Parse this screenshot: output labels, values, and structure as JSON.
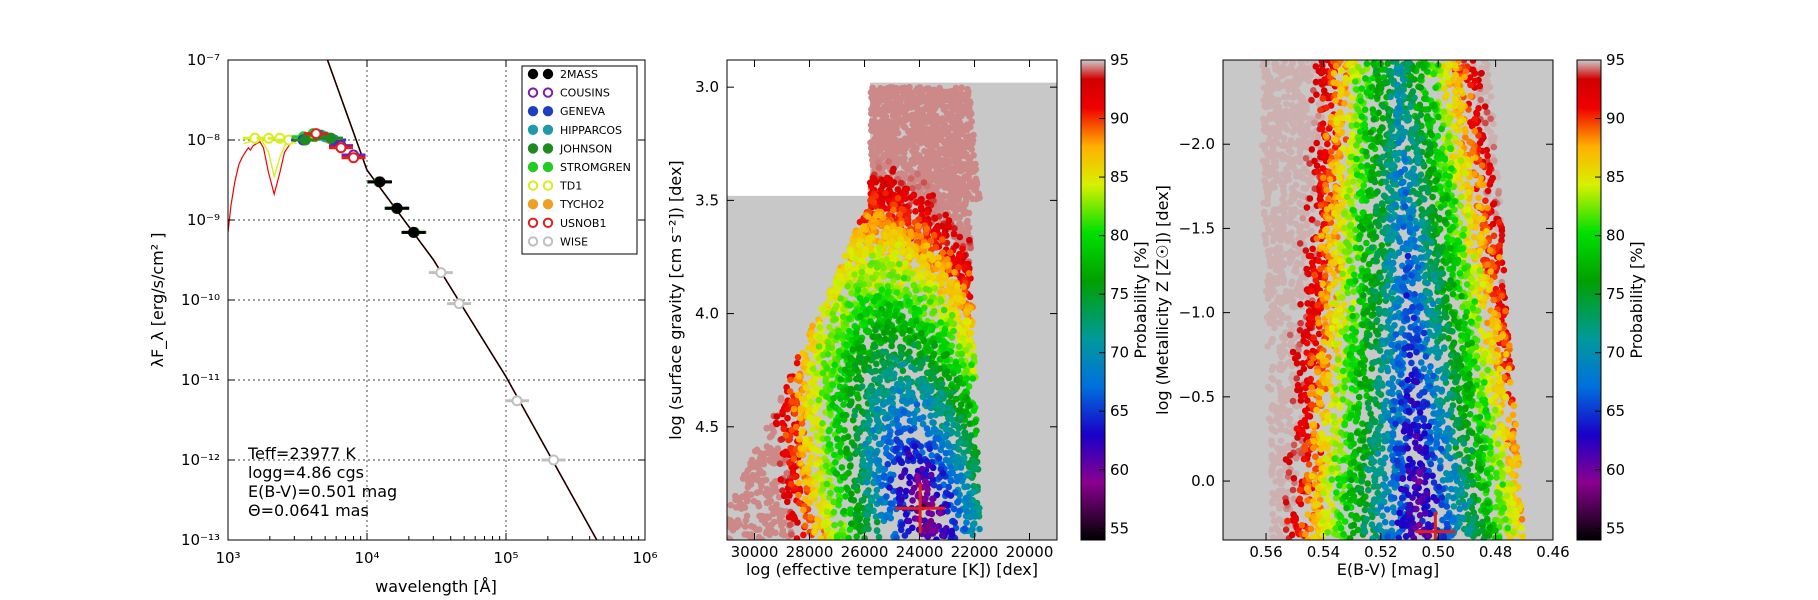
{
  "chart_data": [
    {
      "type": "scatter",
      "xlabel": "wavelength [Å]",
      "ylabel": "λF_λ [erg/s/cm² ]",
      "xscale": "log",
      "yscale": "log",
      "xlim": [
        1000,
        1000000
      ],
      "ylim": [
        1e-13,
        1e-07
      ],
      "grid": true,
      "x_ticks": [
        "10³",
        "10⁴",
        "10⁵",
        "10⁶"
      ],
      "y_ticks": [
        "10⁻⁷",
        "10⁻⁸",
        "10⁻⁹",
        "10⁻¹⁰",
        "10⁻¹¹",
        "10⁻¹²",
        "10⁻¹³"
      ],
      "legend_position": "top-right",
      "legend": [
        {
          "name": "2MASS",
          "color": "#000000",
          "filled": true
        },
        {
          "name": "COUSINS",
          "color": "#7b1fa2",
          "filled": false
        },
        {
          "name": "GENEVA",
          "color": "#1e3fbf",
          "filled": true
        },
        {
          "name": "HIPPARCOS",
          "color": "#1e9aa8",
          "filled": true
        },
        {
          "name": "JOHNSON",
          "color": "#1f8a1f",
          "filled": true
        },
        {
          "name": "STROMGREN",
          "color": "#22cc22",
          "filled": true
        },
        {
          "name": "TD1",
          "color": "#d6ee22",
          "filled": false
        },
        {
          "name": "TYCHO2",
          "color": "#f0a020",
          "filled": true
        },
        {
          "name": "USNOB1",
          "color": "#e02020",
          "filled": false
        },
        {
          "name": "WISE",
          "color": "#c0c0c0",
          "filled": false
        }
      ],
      "photometry": [
        {
          "system": "TD1",
          "x": [
            1560,
            1960,
            2360,
            2740
          ],
          "y": [
            1.05e-08,
            1.05e-08,
            1.05e-08,
            1e-08
          ]
        },
        {
          "system": "STROMGREN",
          "x": [
            3500,
            4100,
            4700,
            5500
          ],
          "y": [
            1.1e-08,
            1.2e-08,
            1.15e-08,
            1.05e-08
          ]
        },
        {
          "system": "GENEVA",
          "x": [
            3470,
            4250,
            4500,
            5400,
            5800
          ],
          "y": [
            1e-08,
            1.15e-08,
            1.15e-08,
            1.05e-08,
            1e-08
          ]
        },
        {
          "system": "TYCHO2",
          "x": [
            4200,
            5300
          ],
          "y": [
            1.1e-08,
            1.05e-08
          ]
        },
        {
          "system": "HIPPARCOS",
          "x": [
            5000
          ],
          "y": [
            1.1e-08
          ]
        },
        {
          "system": "JOHNSON",
          "x": [
            3600,
            4400,
            5500,
            12200,
            16300,
            21900
          ],
          "y": [
            1e-08,
            1.15e-08,
            1.05e-08,
            3e-09,
            1.4e-09,
            7e-10
          ]
        },
        {
          "system": "COUSINS",
          "x": [
            6500,
            8000
          ],
          "y": [
            8.5e-09,
            6.5e-09
          ]
        },
        {
          "system": "2MASS",
          "x": [
            12400,
            16500,
            21600
          ],
          "y": [
            3e-09,
            1.4e-09,
            7e-10
          ]
        },
        {
          "system": "USNOB1",
          "x": [
            4300,
            6500,
            8000
          ],
          "y": [
            1.2e-08,
            8e-09,
            6e-09
          ]
        },
        {
          "system": "WISE",
          "x": [
            34000,
            46000,
            120000,
            220000
          ],
          "y": [
            2.2e-10,
            9e-11,
            5.5e-12,
            1e-12
          ]
        }
      ],
      "model_line": {
        "x": [
          5200,
          10000,
          30000,
          100000,
          450000
        ],
        "y": [
          1e-07,
          4.2e-09,
          3.2e-10,
          1.1e-11,
          1e-13
        ]
      },
      "annotation": [
        "Teff=23977 K",
        "logg=4.86 cgs",
        "E(B-V)=0.501 mag",
        "Θ=0.0641 mas"
      ]
    },
    {
      "type": "scatter",
      "xlabel": "log (effective temperature [K]) [dex]",
      "ylabel": "log (surface gravity [cm s⁻²]) [dex]",
      "xlim": [
        31000,
        19000
      ],
      "ylim": [
        5.0,
        2.88
      ],
      "x_ticks": [
        "30000",
        "28000",
        "26000",
        "24000",
        "22000",
        "20000"
      ],
      "y_ticks": [
        "3.0",
        "3.5",
        "4.0",
        "4.5"
      ],
      "best_fit": {
        "x": 23977,
        "y": 4.86
      },
      "colorbar": {
        "label": "Probability [%]",
        "min": 54,
        "max": 95,
        "ticks": [
          "95",
          "90",
          "85",
          "80",
          "75",
          "70",
          "65",
          "60",
          "55"
        ]
      }
    },
    {
      "type": "scatter",
      "xlabel": "E(B-V) [mag]",
      "ylabel": "log (Metallicity Z [Z☉]) [dex]",
      "xlim": [
        0.575,
        0.46
      ],
      "ylim": [
        0.35,
        -2.5
      ],
      "x_ticks": [
        "0.56",
        "0.54",
        "0.52",
        "0.50",
        "0.48",
        "0.46"
      ],
      "y_ticks": [
        "−2.0",
        "−1.5",
        "−1.0",
        "−0.5",
        "0.0"
      ],
      "best_fit": {
        "x": 0.501,
        "y": 0.3
      },
      "colorbar": {
        "label": "Probability [%]",
        "min": 54,
        "max": 95,
        "ticks": [
          "95",
          "90",
          "85",
          "80",
          "75",
          "70",
          "65",
          "60",
          "55"
        ]
      }
    }
  ]
}
